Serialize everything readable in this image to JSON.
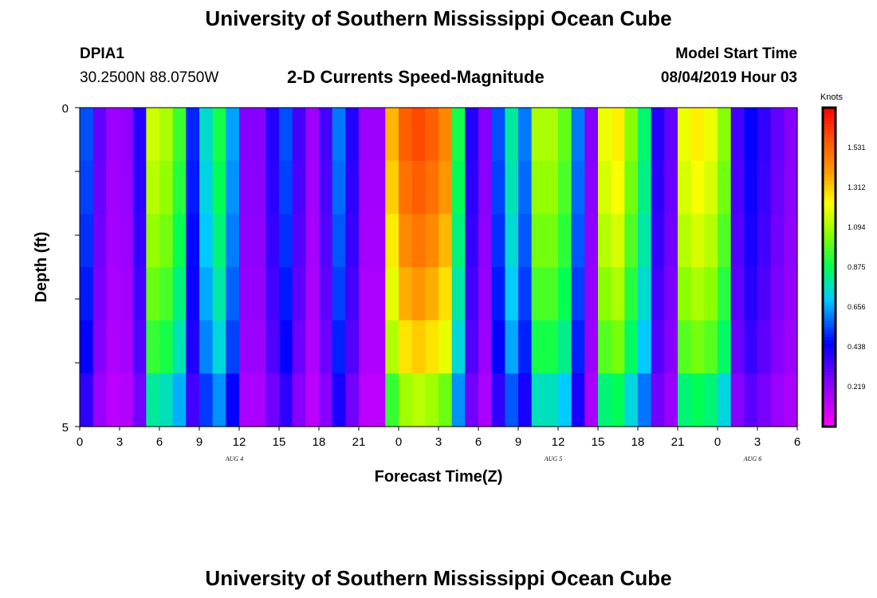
{
  "page": {
    "title": "University of Southern Mississippi Ocean Cube",
    "footer_title": "University of Southern Mississippi Ocean Cube",
    "station_id": "DPIA1",
    "location": "30.2500N 88.0750W",
    "subtitle": "2-D Currents Speed-Magnitude",
    "start_label": "Model Start Time",
    "start_value": "08/04/2019 Hour 03"
  },
  "chart_data": {
    "type": "heatmap",
    "title": "2-D Currents Speed-Magnitude",
    "xlabel": "Forecast Time(Z)",
    "ylabel": "Depth (ft)",
    "colorbar_label": "Knots",
    "colorbar_ticks": [
      "1.531",
      "1.312",
      "1.094",
      "0.875",
      "0.656",
      "0.438",
      "0.219"
    ],
    "value_range": [
      0.0,
      1.75
    ],
    "ylim": [
      0,
      5
    ],
    "y_tick_labels": [
      "0",
      "5"
    ],
    "y_tick_count": 6,
    "x_tick_labels": [
      "0",
      "3",
      "6",
      "9",
      "12",
      "15",
      "18",
      "21",
      "0",
      "3",
      "6",
      "9",
      "12",
      "15",
      "18",
      "21",
      "0",
      "3",
      "6"
    ],
    "date_labels": [
      {
        "label": "AUG 4",
        "tick_index": 4
      },
      {
        "label": "AUG 5",
        "tick_index": 12
      },
      {
        "label": "AUG 6",
        "tick_index": 17
      }
    ],
    "n_time_steps": 54,
    "depth_levels": 5,
    "grid": false,
    "profile_knots": [
      0.55,
      0.3,
      0.2,
      0.22,
      0.4,
      1.15,
      1.1,
      0.95,
      0.5,
      0.75,
      0.9,
      0.65,
      0.25,
      0.25,
      0.4,
      0.55,
      0.35,
      0.2,
      0.35,
      0.6,
      0.4,
      0.2,
      0.2,
      1.35,
      1.55,
      1.6,
      1.55,
      1.45,
      0.9,
      0.4,
      0.25,
      0.55,
      0.8,
      0.6,
      1.1,
      1.1,
      1.0,
      0.6,
      0.25,
      1.2,
      1.25,
      1.05,
      0.85,
      0.4,
      0.3,
      1.2,
      1.25,
      1.2,
      1.05,
      0.35,
      0.45,
      0.38,
      0.3,
      0.25
    ],
    "depth_factors": [
      1.0,
      0.97,
      0.93,
      0.88,
      0.82,
      0.7
    ]
  }
}
